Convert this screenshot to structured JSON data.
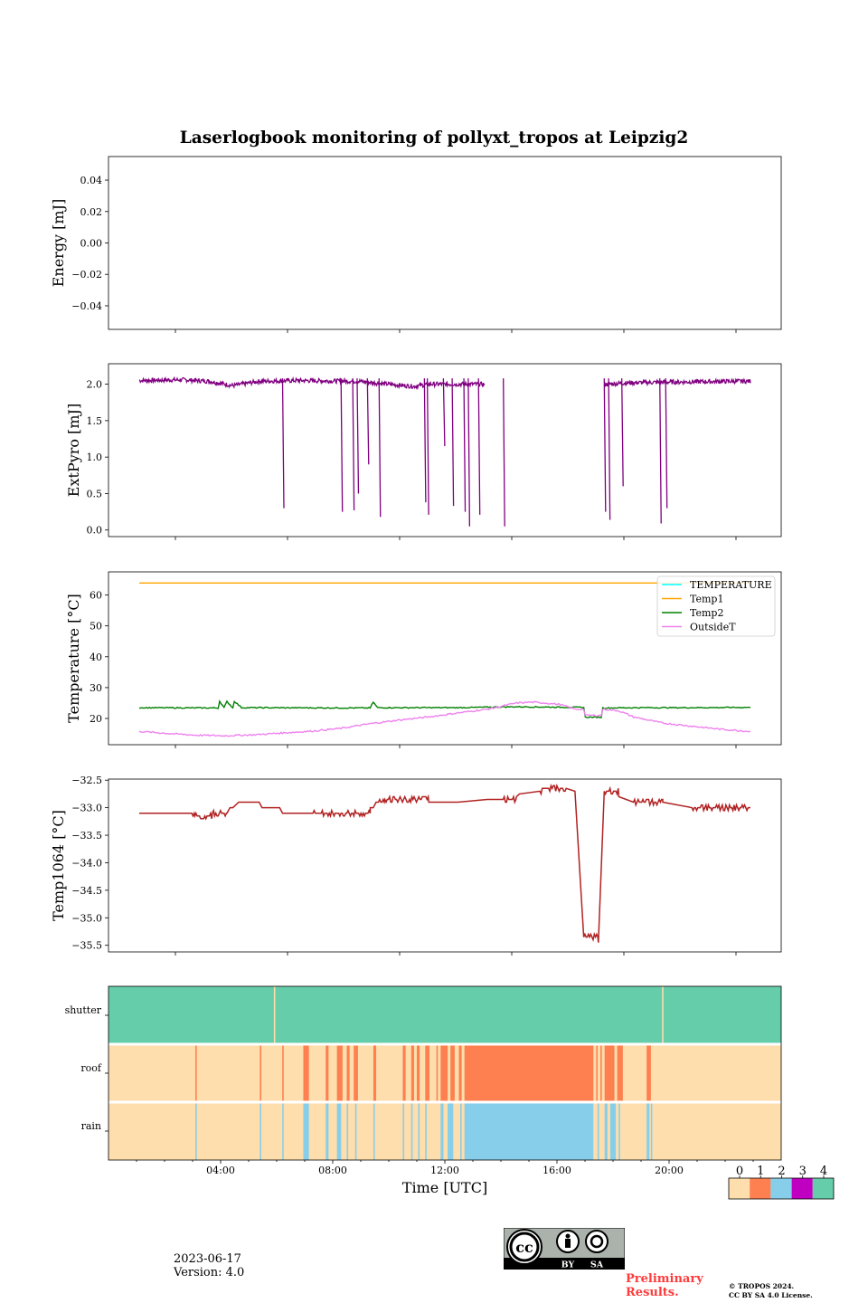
{
  "title": "Laserlogbook monitoring of pollyxt_tropos at Leipzig2",
  "footer": {
    "date": "2023-06-17",
    "version": "Version: 4.0",
    "preliminary": "Preliminary Results.",
    "copyright_line1": "© TROPOS 2024.",
    "copyright_line2": "CC BY SA 4.0 License.",
    "cc_by": "BY",
    "cc_sa": "SA"
  },
  "colors": {
    "energy": "#800080",
    "TEMPERATURE": "#00ffff",
    "Temp1": "#ffa500",
    "Temp2": "#008000",
    "OutsideT": "#ee82ee",
    "Temp1064": "#b22222",
    "status": [
      "#fddeac",
      "#fe7f4f",
      "#87ceeb",
      "#c000c0",
      "#66cdaa"
    ]
  },
  "chart_data": [
    {
      "type": "line",
      "panel": "energy",
      "ylabel": "Energy [mJ]",
      "ylim": [
        -0.055,
        0.055
      ],
      "yticks": [
        -0.04,
        -0.02,
        0.0,
        0.02,
        0.04
      ],
      "ytick_labels": [
        "−0.04",
        "−0.02",
        "0.00",
        "0.02",
        "0.04"
      ],
      "xlim_hours": [
        0,
        24
      ],
      "series": []
    },
    {
      "type": "line",
      "panel": "extpyro",
      "ylabel": "ExtPyro [mJ]",
      "ylim": [
        -0.09,
        2.28
      ],
      "yticks": [
        0.0,
        0.5,
        1.0,
        1.5,
        2.0
      ],
      "ytick_labels": [
        "0.0",
        "0.5",
        "1.0",
        "1.5",
        "2.0"
      ],
      "xlim_hours": [
        0,
        24
      ],
      "series": [
        {
          "name": "ExtPyro",
          "base": [
            [
              1.1,
              2.05
            ],
            [
              2.6,
              2.06
            ],
            [
              3.5,
              2.04
            ],
            [
              4.3,
              1.98
            ],
            [
              5.2,
              2.04
            ],
            [
              6.5,
              2.05
            ],
            [
              8.6,
              2.04
            ],
            [
              9.6,
              2.0
            ],
            [
              10.5,
              1.97
            ],
            [
              11.0,
              2.0
            ],
            [
              12.5,
              2.0
            ],
            [
              13.5,
              2.0
            ],
            [
              15.0,
              2.0
            ],
            [
              17.1,
              2.0
            ],
            [
              17.9,
              2.02
            ],
            [
              19.5,
              2.03
            ],
            [
              21.4,
              2.04
            ],
            [
              22.0,
              2.04
            ]
          ],
          "gaps": [
            [
              12.9,
              17.0
            ]
          ],
          "dips": [
            [
              6.0,
              0.3
            ],
            [
              8.0,
              0.25
            ],
            [
              8.4,
              0.27
            ],
            [
              8.55,
              0.5
            ],
            [
              8.9,
              0.9
            ],
            [
              9.3,
              0.18
            ],
            [
              10.85,
              0.38
            ],
            [
              10.95,
              0.21
            ],
            [
              11.5,
              1.15
            ],
            [
              11.8,
              0.33
            ],
            [
              12.2,
              0.25
            ],
            [
              12.35,
              0.05
            ],
            [
              12.7,
              0.21
            ],
            [
              13.55,
              0.05
            ],
            [
              17.0,
              0.25
            ],
            [
              17.15,
              0.14
            ],
            [
              17.6,
              0.6
            ],
            [
              18.9,
              0.09
            ],
            [
              19.1,
              0.3
            ]
          ]
        }
      ]
    },
    {
      "type": "line",
      "panel": "temperature",
      "ylabel": "Temperature [°C]",
      "ylim": [
        11.5,
        67.5
      ],
      "yticks": [
        20,
        30,
        40,
        50,
        60
      ],
      "ytick_labels": [
        "20",
        "30",
        "40",
        "50",
        "60"
      ],
      "xlim_hours": [
        0,
        24
      ],
      "legend": [
        "TEMPERATURE",
        "Temp1",
        "Temp2",
        "OutsideT"
      ],
      "legend_position": "upper right",
      "series": [
        {
          "name": "TEMPERATURE",
          "x": [],
          "y": []
        },
        {
          "name": "Temp1",
          "x": [
            1.1,
            22.0
          ],
          "y": [
            63.9,
            63.9
          ]
        },
        {
          "name": "Temp2",
          "x": [
            1.1,
            3.8,
            3.85,
            4.0,
            4.1,
            4.3,
            4.35,
            4.6,
            9.0,
            9.1,
            9.25,
            12.0,
            14.0,
            16.0,
            16.3,
            16.35,
            16.9,
            16.95,
            18.0,
            20.0,
            22.0
          ],
          "y": [
            23.5,
            23.4,
            25.6,
            23.5,
            25.5,
            23.4,
            25.6,
            23.5,
            23.4,
            25.3,
            23.5,
            23.5,
            23.8,
            23.6,
            23.6,
            20.4,
            20.4,
            23.4,
            23.5,
            23.5,
            23.6
          ]
        },
        {
          "name": "OutsideT",
          "x": [
            1.1,
            2.0,
            3.0,
            4.0,
            5.0,
            6.0,
            7.0,
            8.0,
            9.0,
            10.0,
            11.0,
            12.0,
            13.0,
            13.5,
            14.0,
            14.5,
            15.0,
            15.5,
            16.0,
            16.3,
            16.35,
            16.9,
            16.95,
            17.5,
            18.0,
            19.0,
            20.0,
            21.0,
            22.0
          ],
          "y": [
            15.8,
            15.2,
            14.6,
            14.4,
            14.7,
            15.3,
            15.9,
            16.8,
            18.3,
            19.5,
            20.5,
            21.8,
            23.0,
            24.0,
            25.0,
            25.3,
            25.0,
            24.5,
            23.0,
            23.0,
            21.0,
            21.0,
            23.0,
            22.5,
            20.5,
            18.5,
            17.5,
            16.5,
            15.8
          ]
        }
      ]
    },
    {
      "type": "line",
      "panel": "temp1064",
      "ylabel": "Temp1064 [°C]",
      "ylim": [
        -35.62,
        -32.48
      ],
      "yticks": [
        -35.5,
        -35.0,
        -34.5,
        -34.0,
        -33.5,
        -33.0,
        -32.5
      ],
      "ytick_labels": [
        "−35.5",
        "−35.0",
        "−34.5",
        "−34.0",
        "−33.5",
        "−33.0",
        "−32.5"
      ],
      "xlim_hours": [
        0,
        24
      ],
      "series": [
        {
          "name": "Temp1064",
          "x": [
            1.1,
            2.9,
            3.0,
            3.3,
            3.5,
            3.6,
            4.1,
            4.2,
            4.3,
            4.5,
            4.6,
            5.2,
            5.3,
            5.9,
            6.0,
            7.0,
            8.0,
            9.0,
            9.1,
            9.2,
            9.4,
            9.5,
            11.0,
            12.0,
            13.0,
            13.5,
            14.0,
            14.1,
            14.8,
            14.9,
            15.7,
            16.0,
            16.3,
            16.8,
            17.0,
            17.5,
            18.0,
            19.0,
            20.0,
            22.0
          ],
          "y": [
            -33.1,
            -33.1,
            -33.15,
            -33.2,
            -33.15,
            -33.1,
            -33.1,
            -33.0,
            -33.0,
            -32.9,
            -32.9,
            -32.9,
            -33.0,
            -33.0,
            -33.1,
            -33.1,
            -33.1,
            -33.0,
            -33.0,
            -32.9,
            -32.9,
            -32.85,
            -32.9,
            -32.9,
            -32.85,
            -32.85,
            -32.8,
            -32.75,
            -32.7,
            -32.65,
            -32.65,
            -32.7,
            -35.35,
            -35.45,
            -32.7,
            -32.8,
            -32.9,
            -32.9,
            -33.0,
            -33.0
          ],
          "noise_ranges": [
            [
              2.9,
              3.7
            ],
            [
              6.5,
              8.5
            ],
            [
              9.2,
              10.2
            ],
            [
              13.4,
              14.0
            ],
            [
              14.3,
              15.6
            ],
            [
              16.3,
              16.8
            ],
            [
              17.0,
              17.3
            ],
            [
              17.9,
              18.3
            ],
            [
              19.8,
              20.6
            ]
          ]
        }
      ]
    },
    {
      "type": "heatmap",
      "panel": "status",
      "rows": [
        "shutter",
        "roof",
        "rain"
      ],
      "xlabel": "Time [UTC]",
      "xticks_hours": [
        4,
        8,
        12,
        16,
        20
      ],
      "xtick_labels": [
        "04:00",
        "08:00",
        "12:00",
        "16:00",
        "20:00"
      ],
      "xlim_hours": [
        0,
        24
      ],
      "default_state": [
        4,
        0,
        0
      ],
      "segments": {
        "shutter": [
          [
            5.9,
            5.95,
            0
          ],
          [
            19.75,
            19.8,
            0
          ]
        ],
        "roof": [
          [
            3.1,
            3.15,
            1
          ],
          [
            5.4,
            5.45,
            1
          ],
          [
            6.2,
            6.25,
            1
          ],
          [
            6.95,
            7.15,
            1
          ],
          [
            7.75,
            7.85,
            1
          ],
          [
            8.15,
            8.35,
            1
          ],
          [
            8.5,
            8.6,
            1
          ],
          [
            8.75,
            8.9,
            1
          ],
          [
            9.45,
            9.55,
            1
          ],
          [
            10.5,
            10.6,
            1
          ],
          [
            10.8,
            10.9,
            1
          ],
          [
            11.0,
            11.1,
            1
          ],
          [
            11.3,
            11.45,
            1
          ],
          [
            11.7,
            11.75,
            1
          ],
          [
            11.85,
            12.1,
            1
          ],
          [
            12.2,
            12.35,
            1
          ],
          [
            12.5,
            12.6,
            1
          ],
          [
            12.7,
            17.3,
            1
          ],
          [
            17.4,
            17.45,
            1
          ],
          [
            17.55,
            17.6,
            1
          ],
          [
            17.7,
            18.05,
            1
          ],
          [
            18.15,
            18.35,
            1
          ],
          [
            19.2,
            19.35,
            1
          ]
        ],
        "rain": [
          [
            3.1,
            3.15,
            2
          ],
          [
            5.4,
            5.45,
            2
          ],
          [
            6.2,
            6.25,
            2
          ],
          [
            6.95,
            7.15,
            2
          ],
          [
            7.75,
            7.85,
            2
          ],
          [
            8.15,
            8.3,
            2
          ],
          [
            8.5,
            8.55,
            2
          ],
          [
            8.8,
            8.85,
            2
          ],
          [
            9.45,
            9.5,
            2
          ],
          [
            10.5,
            10.55,
            2
          ],
          [
            10.8,
            10.85,
            2
          ],
          [
            11.05,
            11.1,
            2
          ],
          [
            11.3,
            11.35,
            2
          ],
          [
            11.85,
            11.95,
            2
          ],
          [
            12.1,
            12.3,
            2
          ],
          [
            12.55,
            12.6,
            2
          ],
          [
            12.7,
            17.3,
            2
          ],
          [
            17.45,
            17.5,
            2
          ],
          [
            17.7,
            17.8,
            2
          ],
          [
            17.9,
            18.1,
            2
          ],
          [
            18.2,
            18.25,
            2
          ],
          [
            19.2,
            19.3,
            2
          ],
          [
            19.35,
            19.4,
            2
          ]
        ]
      }
    },
    {
      "type": "heatmap",
      "panel": "colorbar",
      "tick_labels": [
        "0",
        "1",
        "2",
        "3",
        "4"
      ]
    }
  ]
}
